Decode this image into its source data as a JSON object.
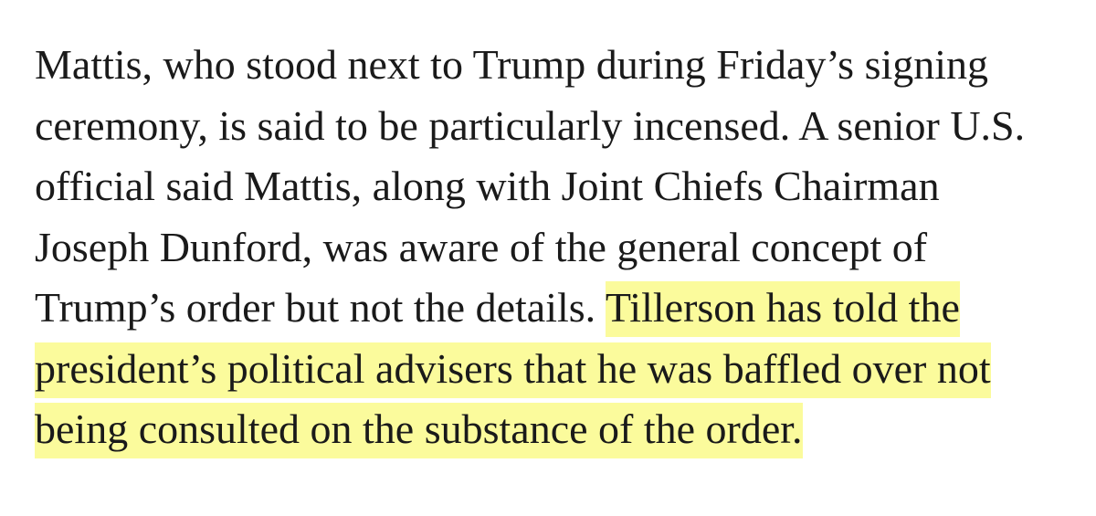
{
  "article": {
    "lines": [
      {
        "plain": "Mattis, who stood next to Trump during Friday’s signing",
        "highlight": ""
      },
      {
        "plain": "ceremony, is said to be particularly incensed. A senior U.S.",
        "highlight": ""
      },
      {
        "plain": "official said Mattis, along with Joint Chiefs Chairman",
        "highlight": ""
      },
      {
        "plain": "Joseph Dunford, was aware of the general concept of",
        "highlight": ""
      },
      {
        "plain": "Trump’s order but not the details. ",
        "highlight": "Tillerson has told the"
      },
      {
        "plain": "",
        "highlight": "president’s political advisers that he was baffled over not"
      },
      {
        "plain": "",
        "highlight": "being consulted on the substance of the order."
      }
    ],
    "highlight_color": "#fbfb9c",
    "text_color": "#1a1a1a"
  }
}
